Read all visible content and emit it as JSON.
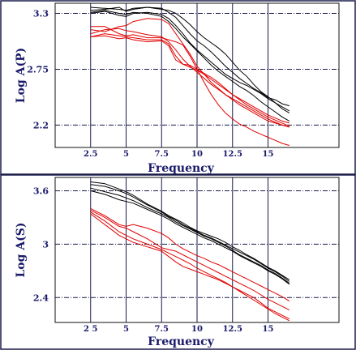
{
  "colors": {
    "black": "#000000",
    "red": "#e00000",
    "grid": "#1a1a4a",
    "text": "#1a1a6a"
  },
  "chart_data": [
    {
      "type": "line",
      "xlabel": "Frequency",
      "ylabel": "Log A(P)",
      "xlim": [
        0,
        20
      ],
      "ylim": [
        1.98,
        3.4
      ],
      "x_ticks": [
        2.5,
        5,
        7.5,
        10,
        12.5,
        15
      ],
      "x_tick_labels": [
        "2.5",
        "5",
        "7.5",
        "10",
        "12.5",
        "15"
      ],
      "y_ticks": [
        2.2,
        2.75,
        3.3
      ],
      "y_tick_labels": [
        "2.2",
        "2.75",
        "3.3"
      ],
      "grid": true,
      "series": [
        {
          "color": "black",
          "x": [
            2.5,
            3.5,
            4.5,
            5,
            5.5,
            6.5,
            7.5,
            8,
            8.5,
            9,
            9.5,
            10,
            10.5,
            11,
            11.5,
            12,
            12.5,
            13,
            13.5,
            14,
            14.5,
            15,
            15.5,
            16,
            16.5
          ],
          "y": [
            3.36,
            3.35,
            3.34,
            3.33,
            3.35,
            3.36,
            3.34,
            3.33,
            3.3,
            3.25,
            3.19,
            3.12,
            3.06,
            3.01,
            2.96,
            2.9,
            2.82,
            2.74,
            2.68,
            2.6,
            2.53,
            2.48,
            2.42,
            2.36,
            2.32
          ]
        },
        {
          "color": "black",
          "x": [
            2.5,
            3.5,
            4.5,
            5,
            5.5,
            6.5,
            7.5,
            8,
            8.5,
            9,
            9.5,
            10,
            10.5,
            11,
            11.5,
            12,
            12.5,
            13,
            13.5,
            14,
            14.5,
            15,
            15.5,
            16,
            16.5
          ],
          "y": [
            3.33,
            3.34,
            3.36,
            3.32,
            3.34,
            3.36,
            3.35,
            3.31,
            3.26,
            3.18,
            3.1,
            3.03,
            2.98,
            2.92,
            2.85,
            2.78,
            2.72,
            2.66,
            2.61,
            2.56,
            2.52,
            2.47,
            2.45,
            2.41,
            2.39
          ]
        },
        {
          "color": "black",
          "x": [
            2.5,
            3.5,
            4.5,
            5,
            5.5,
            6.5,
            7.5,
            8,
            8.5,
            9,
            9.5,
            10,
            10.5,
            11,
            11.5,
            12,
            12.5,
            13,
            13.5,
            14,
            14.5,
            15,
            15.5,
            16,
            16.5
          ],
          "y": [
            3.3,
            3.32,
            3.28,
            3.27,
            3.3,
            3.31,
            3.29,
            3.25,
            3.18,
            3.1,
            3.01,
            2.94,
            2.88,
            2.82,
            2.76,
            2.7,
            2.66,
            2.62,
            2.59,
            2.55,
            2.51,
            2.46,
            2.42,
            2.38,
            2.34
          ]
        },
        {
          "color": "black",
          "x": [
            2.5,
            3.5,
            4.5,
            5,
            5.5,
            6.5,
            7.5,
            8,
            8.5,
            9,
            9.5,
            10,
            10.5,
            11,
            11.5,
            12,
            12.5,
            13,
            13.5,
            14,
            14.5,
            15,
            15.5,
            16,
            16.5
          ],
          "y": [
            3.31,
            3.33,
            3.3,
            3.29,
            3.31,
            3.3,
            3.27,
            3.22,
            3.15,
            3.07,
            3.0,
            2.93,
            2.86,
            2.79,
            2.73,
            2.68,
            2.63,
            2.58,
            2.54,
            2.49,
            2.43,
            2.38,
            2.33,
            2.28,
            2.24
          ]
        },
        {
          "color": "red",
          "x": [
            2.5,
            3.5,
            4.5,
            5,
            5.5,
            6.5,
            7.5,
            8,
            8.5,
            9,
            9.5,
            10,
            10.5,
            11,
            11.5,
            12,
            12.5,
            13,
            13.5,
            14,
            14.5,
            15,
            15.5,
            16,
            16.5
          ],
          "y": [
            3.17,
            3.17,
            3.1,
            3.08,
            3.09,
            3.06,
            3.06,
            3.04,
            3.02,
            2.99,
            2.88,
            2.75,
            2.62,
            2.5,
            2.4,
            2.32,
            2.26,
            2.21,
            2.18,
            2.14,
            2.11,
            2.08,
            2.05,
            2.02,
            2.0
          ]
        },
        {
          "color": "red",
          "x": [
            2.5,
            3.5,
            4.5,
            5,
            5.5,
            6.5,
            7.5,
            8,
            8.5,
            9,
            9.5,
            10,
            10.5,
            11,
            11.5,
            12,
            12.5,
            13,
            13.5,
            14,
            14.5,
            15,
            15.5,
            16,
            16.5
          ],
          "y": [
            3.14,
            3.12,
            3.17,
            3.18,
            3.22,
            3.25,
            3.24,
            3.2,
            3.1,
            3.0,
            2.9,
            2.78,
            2.7,
            2.62,
            2.56,
            2.5,
            2.45,
            2.4,
            2.36,
            2.32,
            2.28,
            2.24,
            2.22,
            2.2,
            2.18
          ]
        },
        {
          "color": "red",
          "x": [
            2.5,
            3.5,
            4.5,
            5,
            5.5,
            6.5,
            7.5,
            8,
            8.5,
            9,
            9.5,
            10,
            10.5,
            11,
            11.5,
            12,
            12.5,
            13,
            13.5,
            14,
            14.5,
            15,
            15.5,
            16,
            16.5
          ],
          "y": [
            3.1,
            3.14,
            3.15,
            3.13,
            3.12,
            3.09,
            3.07,
            3.02,
            2.94,
            2.85,
            2.78,
            2.72,
            2.66,
            2.6,
            2.55,
            2.5,
            2.46,
            2.42,
            2.38,
            2.34,
            2.3,
            2.26,
            2.23,
            2.2,
            2.18
          ]
        },
        {
          "color": "red",
          "x": [
            2.5,
            3.5,
            4.5,
            5,
            5.5,
            6.5,
            7.5,
            8,
            8.5,
            9,
            9.5,
            10,
            10.5,
            11,
            11.5,
            12,
            12.5,
            13,
            13.5,
            14,
            14.5,
            15,
            15.5,
            16,
            16.5
          ],
          "y": [
            3.07,
            3.1,
            3.08,
            3.07,
            3.06,
            3.04,
            3.04,
            3.0,
            2.88,
            2.8,
            2.77,
            2.74,
            2.7,
            2.65,
            2.6,
            2.55,
            2.5,
            2.46,
            2.42,
            2.38,
            2.34,
            2.3,
            2.27,
            2.24,
            2.22
          ]
        },
        {
          "color": "red",
          "x": [
            2.5,
            3.5,
            4.5,
            5,
            5.5,
            6.5,
            7.5,
            8,
            8.5,
            9,
            9.5,
            10,
            10.5,
            11,
            11.5,
            12,
            12.5,
            13,
            13.5,
            14,
            14.5,
            15,
            15.5,
            16,
            16.5
          ],
          "y": [
            3.07,
            3.08,
            3.05,
            3.06,
            3.04,
            3.02,
            3.03,
            2.98,
            2.84,
            2.8,
            2.79,
            2.75,
            2.71,
            2.67,
            2.62,
            2.56,
            2.5,
            2.45,
            2.4,
            2.36,
            2.32,
            2.28,
            2.25,
            2.22,
            2.19
          ]
        }
      ]
    },
    {
      "type": "line",
      "xlabel": "Frequency",
      "ylabel": "Log A(S)",
      "xlim": [
        0,
        20
      ],
      "ylim": [
        2.12,
        3.75
      ],
      "x_ticks": [
        2.5,
        5,
        7.5,
        10,
        12.5,
        15
      ],
      "x_tick_labels": [
        "2 5",
        "5",
        "7.5",
        "10",
        "12.5",
        "15"
      ],
      "y_ticks": [
        2.4,
        3,
        3.6
      ],
      "y_tick_labels": [
        "2.4",
        "3",
        "3.6"
      ],
      "grid": true,
      "series": [
        {
          "color": "black",
          "x": [
            2.5,
            3.5,
            4.5,
            5,
            5.5,
            6.5,
            7.5,
            8,
            8.5,
            9,
            9.5,
            10,
            10.5,
            11,
            11.5,
            12,
            12.5,
            13,
            13.5,
            14,
            14.5,
            15,
            15.5,
            16,
            16.5
          ],
          "y": [
            3.7,
            3.68,
            3.62,
            3.59,
            3.55,
            3.45,
            3.37,
            3.32,
            3.28,
            3.24,
            3.19,
            3.15,
            3.12,
            3.09,
            3.06,
            3.02,
            2.97,
            2.93,
            2.88,
            2.84,
            2.79,
            2.74,
            2.7,
            2.65,
            2.6
          ]
        },
        {
          "color": "black",
          "x": [
            2.5,
            3.5,
            4.5,
            5,
            5.5,
            6.5,
            7.5,
            8,
            8.5,
            9,
            9.5,
            10,
            10.5,
            11,
            11.5,
            12,
            12.5,
            13,
            13.5,
            14,
            14.5,
            15,
            15.5,
            16,
            16.5
          ],
          "y": [
            3.67,
            3.65,
            3.6,
            3.57,
            3.53,
            3.44,
            3.36,
            3.31,
            3.27,
            3.22,
            3.18,
            3.14,
            3.1,
            3.07,
            3.03,
            2.99,
            2.95,
            2.91,
            2.87,
            2.83,
            2.78,
            2.73,
            2.69,
            2.64,
            2.58
          ]
        },
        {
          "color": "black",
          "x": [
            2.5,
            3.5,
            4.5,
            5,
            5.5,
            6.5,
            7.5,
            8,
            8.5,
            9,
            9.5,
            10,
            10.5,
            11,
            11.5,
            12,
            12.5,
            13,
            13.5,
            14,
            14.5,
            15,
            15.5,
            16,
            16.5
          ],
          "y": [
            3.63,
            3.59,
            3.55,
            3.52,
            3.49,
            3.41,
            3.34,
            3.3,
            3.25,
            3.21,
            3.17,
            3.13,
            3.09,
            3.06,
            3.02,
            2.98,
            2.93,
            2.88,
            2.84,
            2.8,
            2.76,
            2.71,
            2.67,
            2.62,
            2.56
          ]
        },
        {
          "color": "black",
          "x": [
            2.5,
            3.5,
            4.5,
            5,
            5.5,
            6.5,
            7.5,
            8,
            8.5,
            9,
            9.5,
            10,
            10.5,
            11,
            11.5,
            12,
            12.5,
            13,
            13.5,
            14,
            14.5,
            15,
            15.5,
            16,
            16.5
          ],
          "y": [
            3.6,
            3.56,
            3.5,
            3.48,
            3.46,
            3.39,
            3.32,
            3.28,
            3.23,
            3.19,
            3.15,
            3.11,
            3.07,
            3.04,
            3.0,
            2.96,
            2.92,
            2.87,
            2.83,
            2.79,
            2.75,
            2.7,
            2.66,
            2.61,
            2.55
          ]
        },
        {
          "color": "red",
          "x": [
            2.5,
            3.5,
            4.5,
            5,
            5.5,
            6.5,
            7.5,
            8,
            8.5,
            9,
            9.5,
            10,
            10.5,
            11,
            11.5,
            12,
            12.5,
            13,
            13.5,
            14,
            14.5,
            15,
            15.5,
            16,
            16.5
          ],
          "y": [
            3.4,
            3.32,
            3.22,
            3.2,
            3.22,
            3.18,
            3.12,
            3.07,
            3.0,
            2.95,
            2.91,
            2.87,
            2.84,
            2.8,
            2.77,
            2.73,
            2.69,
            2.65,
            2.61,
            2.57,
            2.53,
            2.49,
            2.45,
            2.41,
            2.36
          ]
        },
        {
          "color": "red",
          "x": [
            2.5,
            3.5,
            4.5,
            5,
            5.5,
            6.5,
            7.5,
            8,
            8.5,
            9,
            9.5,
            10,
            10.5,
            11,
            11.5,
            12,
            12.5,
            13,
            13.5,
            14,
            14.5,
            15,
            15.5,
            16,
            16.5
          ],
          "y": [
            3.38,
            3.3,
            3.2,
            3.18,
            3.14,
            3.06,
            2.96,
            2.94,
            2.92,
            2.88,
            2.84,
            2.8,
            2.76,
            2.72,
            2.68,
            2.64,
            2.6,
            2.56,
            2.52,
            2.48,
            2.43,
            2.38,
            2.34,
            2.3,
            2.26
          ]
        },
        {
          "color": "red",
          "x": [
            2.5,
            3.5,
            4.5,
            5,
            5.5,
            6.5,
            7.5,
            8,
            8.5,
            9,
            9.5,
            10,
            10.5,
            11,
            11.5,
            12,
            12.5,
            13,
            13.5,
            14,
            14.5,
            15,
            15.5,
            16,
            16.5
          ],
          "y": [
            3.36,
            3.26,
            3.14,
            3.1,
            3.06,
            3.0,
            2.94,
            2.9,
            2.86,
            2.82,
            2.78,
            2.73,
            2.69,
            2.65,
            2.61,
            2.57,
            2.52,
            2.48,
            2.44,
            2.4,
            2.34,
            2.28,
            2.24,
            2.2,
            2.16
          ]
        },
        {
          "color": "red",
          "x": [
            2.5,
            3.5,
            4.5,
            5,
            5.5,
            6.5,
            7.5,
            8,
            8.5,
            9,
            9.5,
            10,
            10.5,
            11,
            11.5,
            12,
            12.5,
            13,
            13.5,
            14,
            14.5,
            15,
            15.5,
            16,
            16.5
          ],
          "y": [
            3.34,
            3.22,
            3.1,
            3.06,
            3.02,
            2.97,
            2.92,
            2.86,
            2.8,
            2.75,
            2.72,
            2.69,
            2.66,
            2.63,
            2.6,
            2.56,
            2.52,
            2.47,
            2.42,
            2.37,
            2.32,
            2.27,
            2.22,
            2.18,
            2.14
          ]
        }
      ]
    }
  ]
}
